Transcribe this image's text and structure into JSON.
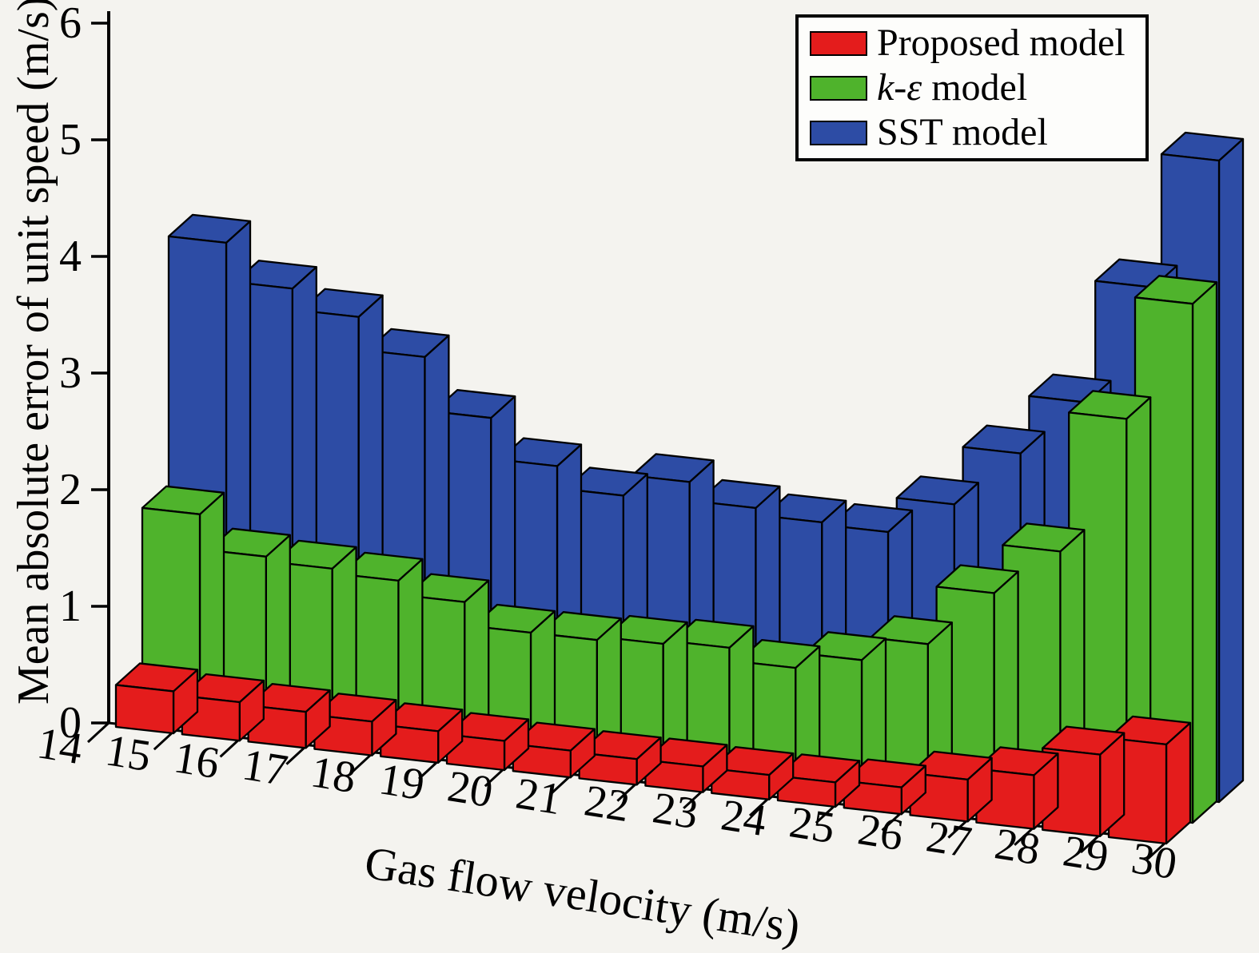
{
  "figure": {
    "x_axis_title": "Gas flow velocity (m/s)",
    "y_axis_title": "Mean absolute error of unit speed (m/s)",
    "background_color": "#f4f3ef",
    "axis_color": "#000000"
  },
  "legend": {
    "items": [
      {
        "em": "",
        "text": "Proposed model",
        "color": "#e41c1c"
      },
      {
        "em": "k-ε",
        "text": " model",
        "color": "#4fb32c"
      },
      {
        "em": "",
        "text": "SST model",
        "color": "#2d4ca5"
      }
    ]
  },
  "chart_data": {
    "type": "bar",
    "style": "3d-grouped-bars",
    "title": "",
    "xlabel": "Gas flow velocity (m/s)",
    "ylabel": "Mean absolute error of unit speed (m/s)",
    "x": [
      15,
      16,
      17,
      18,
      19,
      20,
      21,
      22,
      23,
      24,
      25,
      26,
      27,
      28,
      29,
      30
    ],
    "xticks": [
      14,
      15,
      16,
      17,
      18,
      19,
      20,
      21,
      22,
      23,
      24,
      25,
      26,
      27,
      28,
      29,
      30
    ],
    "yticks": [
      0,
      1,
      2,
      3,
      4,
      5,
      6
    ],
    "ylim": [
      0,
      6
    ],
    "grid": false,
    "legend_position": "top-right",
    "series": [
      {
        "name": "Proposed model",
        "color": "#e41c1c",
        "values": [
          0.36,
          0.33,
          0.31,
          0.29,
          0.27,
          0.25,
          0.23,
          0.22,
          0.22,
          0.21,
          0.21,
          0.23,
          0.36,
          0.46,
          0.7,
          0.85
        ]
      },
      {
        "name": "k-ε model",
        "color": "#4fb32c",
        "values": [
          1.7,
          1.4,
          1.36,
          1.32,
          1.2,
          1.0,
          1.0,
          1.03,
          1.06,
          0.95,
          1.08,
          1.28,
          1.78,
          2.2,
          3.4,
          4.45
        ]
      },
      {
        "name": "SST model",
        "color": "#2d4ca5",
        "values": [
          3.85,
          3.52,
          3.34,
          3.06,
          2.6,
          2.25,
          2.06,
          2.24,
          2.08,
          2.02,
          2.0,
          2.3,
          2.8,
          3.3,
          4.35,
          5.5
        ]
      }
    ]
  }
}
